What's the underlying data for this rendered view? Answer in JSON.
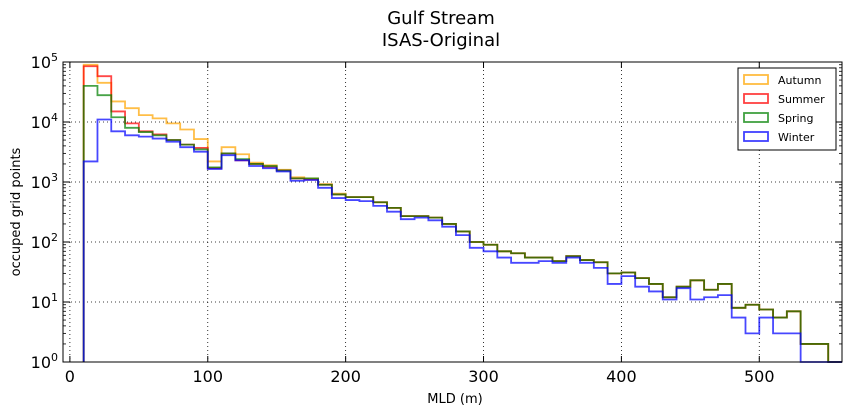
{
  "chart_data": {
    "type": "line",
    "title": "Gulf Stream",
    "subtitle": "ISAS-Original",
    "xlabel": "MLD (m)",
    "ylabel": "occuped grid points",
    "yscale": "log",
    "xlim": [
      -5,
      560
    ],
    "ylim": [
      1,
      100000
    ],
    "grid": true,
    "legend_position": "top-right",
    "x_ticks": [
      {
        "value": 0,
        "label": "0"
      },
      {
        "value": 100,
        "label": "100"
      },
      {
        "value": 200,
        "label": "200"
      },
      {
        "value": 300,
        "label": "300"
      },
      {
        "value": 400,
        "label": "400"
      },
      {
        "value": 500,
        "label": "500"
      }
    ],
    "y_ticks": [
      {
        "value": 1,
        "base": "10",
        "exp": "0"
      },
      {
        "value": 10,
        "base": "10",
        "exp": "1"
      },
      {
        "value": 100,
        "base": "10",
        "exp": "2"
      },
      {
        "value": 1000,
        "base": "10",
        "exp": "3"
      },
      {
        "value": 10000,
        "base": "10",
        "exp": "4"
      },
      {
        "value": 100000,
        "base": "10",
        "exp": "5"
      }
    ],
    "bin_edges": [
      10,
      20,
      30,
      40,
      50,
      60,
      70,
      80,
      90,
      100,
      110,
      120,
      130,
      140,
      150,
      160,
      170,
      180,
      190,
      200,
      210,
      220,
      230,
      240,
      250,
      260,
      270,
      280,
      290,
      300,
      310,
      320,
      330,
      340,
      350,
      360,
      370,
      380,
      390,
      400,
      410,
      420,
      430,
      440,
      450,
      460,
      470,
      480,
      490,
      500,
      510,
      520,
      530,
      540,
      550
    ],
    "series": [
      {
        "name": "Autumn",
        "color": "#ffa500",
        "values": [
          90000,
          45000,
          22000,
          17000,
          13000,
          11500,
          9500,
          7500,
          5200,
          2200,
          3800,
          2900,
          2100,
          1900,
          1600,
          1200,
          1150,
          920,
          640,
          560,
          560,
          460,
          370,
          270,
          270,
          255,
          200,
          150,
          100,
          90,
          70,
          65,
          55,
          55,
          48,
          58,
          50,
          46,
          30,
          31,
          25,
          20,
          12,
          18,
          23,
          16,
          20,
          8,
          9,
          7.5,
          5.5,
          7,
          2,
          2,
          1
        ]
      },
      {
        "name": "Summer",
        "color": "#ff0000",
        "values": [
          85000,
          58000,
          15000,
          9500,
          7000,
          6200,
          5000,
          4200,
          3700,
          1700,
          3000,
          2300,
          2000,
          1800,
          1550,
          1150,
          1100,
          900,
          620,
          560,
          560,
          460,
          370,
          270,
          270,
          255,
          200,
          150,
          100,
          90,
          70,
          65,
          55,
          55,
          48,
          58,
          50,
          46,
          30,
          31,
          25,
          20,
          12,
          18,
          23,
          16,
          20,
          8,
          9,
          7.5,
          5.5,
          7,
          2,
          2,
          1
        ]
      },
      {
        "name": "Spring",
        "color": "#008000",
        "values": [
          40000,
          28000,
          12000,
          8000,
          6800,
          6000,
          5000,
          4200,
          3500,
          1750,
          3000,
          2400,
          2000,
          1850,
          1550,
          1150,
          1150,
          900,
          620,
          560,
          560,
          460,
          370,
          270,
          270,
          255,
          200,
          150,
          100,
          90,
          70,
          65,
          55,
          55,
          48,
          58,
          50,
          46,
          30,
          31,
          25,
          20,
          12,
          18,
          23,
          16,
          20,
          8,
          9,
          7.5,
          5.5,
          7,
          2,
          2,
          1
        ]
      },
      {
        "name": "Winter",
        "color": "#0000ff",
        "values": [
          2200,
          11000,
          7000,
          6000,
          5700,
          5300,
          4700,
          3800,
          3200,
          1650,
          2800,
          2300,
          1850,
          1700,
          1500,
          1050,
          1080,
          800,
          540,
          500,
          480,
          400,
          320,
          240,
          255,
          230,
          180,
          130,
          80,
          70,
          55,
          45,
          45,
          48,
          45,
          55,
          45,
          37,
          20,
          27,
          18,
          15,
          11,
          17,
          11,
          12,
          13,
          5.5,
          3,
          5.5,
          3,
          3,
          1,
          1,
          1
        ]
      }
    ]
  }
}
